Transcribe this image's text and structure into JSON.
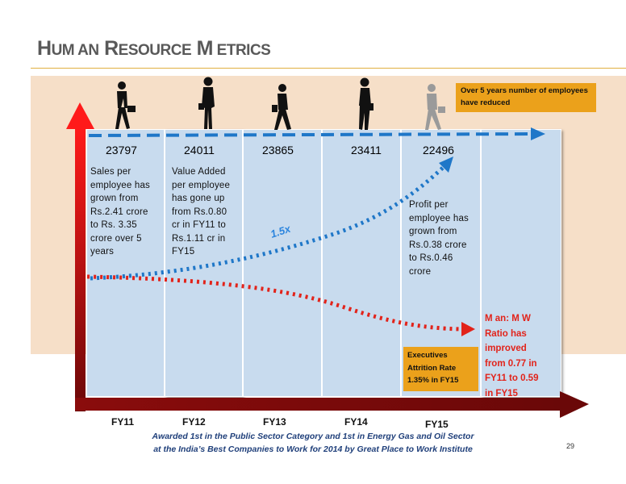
{
  "title": {
    "w1_first": "H",
    "w1_rest": "UM AN",
    "w2_first": "R",
    "w2_rest": "ESOURCE",
    "w3_first": "M",
    "w3_rest": " ETRICS"
  },
  "callout_reduced": "Over 5 years number of employees have reduced",
  "employee_counts": [
    "23797",
    "24011",
    "23865",
    "23411",
    "22496"
  ],
  "notes": {
    "sales": [
      "Sales per",
      "employee has",
      "grown from",
      "Rs.2.41 crore",
      "to Rs. 3.35",
      "crore  over 5",
      "years"
    ],
    "value_added": [
      "Value Added",
      "per employee",
      "has gone up",
      "from Rs.0.80",
      "cr in FY11 to",
      "Rs.1.11 cr in",
      "FY15"
    ],
    "profit": [
      "Profit per",
      "employee has",
      "grown from",
      "Rs.0.38 crore",
      "to Rs.0.46",
      "crore"
    ]
  },
  "growth_label": "1.5x",
  "attrition_callout": [
    "Executives",
    "Attrition Rate",
    "1.35% in FY15"
  ],
  "mw_ratio": [
    "M an: M W",
    "Ratio has",
    "improved",
    "from 0.77 in",
    "FY11 to 0.59",
    "in FY15"
  ],
  "fiscal_years": [
    "FY11",
    "FY12",
    "FY13",
    "FY14",
    "FY15"
  ],
  "award": [
    "Awarded 1st in the Public Sector Category and 1st in Energy Gas and Oil Sector",
    "at the India’s Best Companies to Work for 2014 by Great Place to Work Institute"
  ],
  "page_number": "29",
  "colors": {
    "band": "#F6DFC8",
    "column": "#C8DBEE",
    "callout": "#EBA11B",
    "red_arrow": "#E2231A",
    "dark_red_axis": "#7A0A0A",
    "blue_trend": "#1F77C8",
    "title": "#595959"
  }
}
